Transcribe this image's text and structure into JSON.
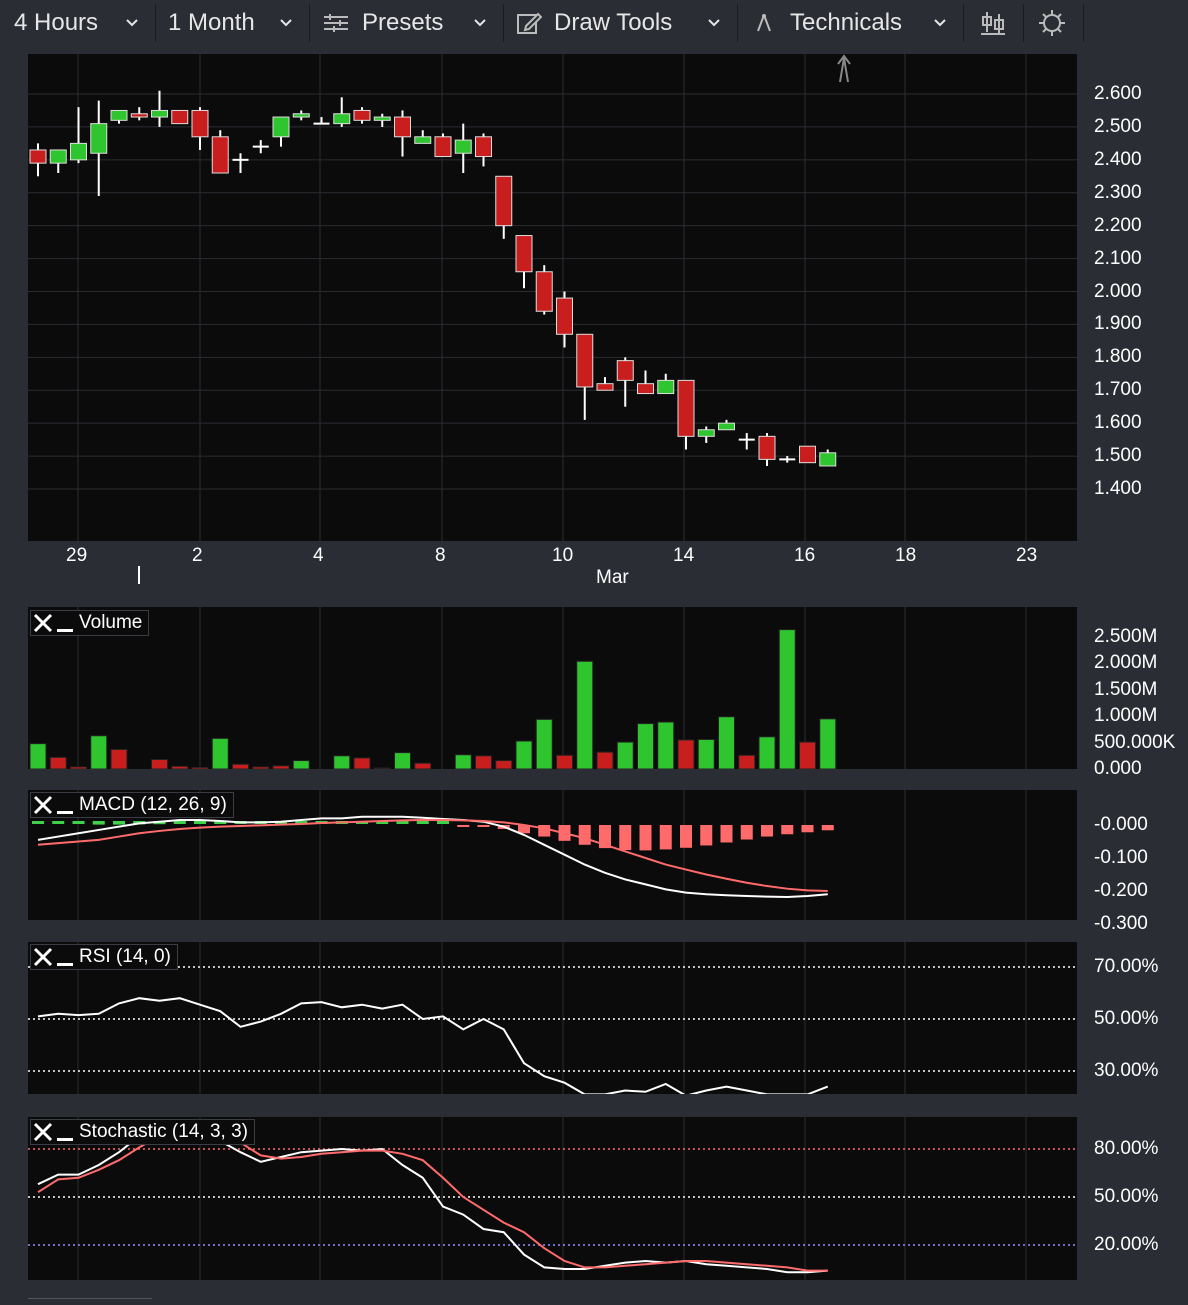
{
  "toolbar": {
    "interval": "4 Hours",
    "range": "1 Month",
    "presets": "Presets",
    "draw_tools": "Draw Tools",
    "technicals": "Technicals"
  },
  "chart_data": [
    {
      "type": "candlestick",
      "ylim": [
        1.4,
        2.65
      ],
      "y_ticks": [
        "2.600",
        "2.500",
        "2.400",
        "2.300",
        "2.200",
        "2.100",
        "2.000",
        "1.900",
        "1.800",
        "1.700",
        "1.600",
        "1.500",
        "1.400"
      ],
      "x_ticks": [
        "29",
        "2",
        "4",
        "8",
        "10",
        "14",
        "16",
        "18",
        "23"
      ],
      "x_month_label": "Mar",
      "candles": [
        {
          "o": 2.43,
          "h": 2.45,
          "l": 2.35,
          "c": 2.39
        },
        {
          "o": 2.39,
          "h": 2.43,
          "l": 2.36,
          "c": 2.43
        },
        {
          "o": 2.4,
          "h": 2.56,
          "l": 2.39,
          "c": 2.45
        },
        {
          "o": 2.42,
          "h": 2.58,
          "l": 2.29,
          "c": 2.51
        },
        {
          "o": 2.52,
          "h": 2.55,
          "l": 2.51,
          "c": 2.55
        },
        {
          "o": 2.54,
          "h": 2.56,
          "l": 2.52,
          "c": 2.53
        },
        {
          "o": 2.53,
          "h": 2.61,
          "l": 2.5,
          "c": 2.55
        },
        {
          "o": 2.55,
          "h": 2.55,
          "l": 2.51,
          "c": 2.51
        },
        {
          "o": 2.55,
          "h": 2.56,
          "l": 2.43,
          "c": 2.47
        },
        {
          "o": 2.47,
          "h": 2.49,
          "l": 2.36,
          "c": 2.36
        },
        {
          "o": 2.4,
          "h": 2.42,
          "l": 2.36,
          "c": 2.4
        },
        {
          "o": 2.44,
          "h": 2.46,
          "l": 2.42,
          "c": 2.44
        },
        {
          "o": 2.47,
          "h": 2.53,
          "l": 2.44,
          "c": 2.53
        },
        {
          "o": 2.53,
          "h": 2.55,
          "l": 2.52,
          "c": 2.54
        },
        {
          "o": 2.51,
          "h": 2.53,
          "l": 2.51,
          "c": 2.51
        },
        {
          "o": 2.51,
          "h": 2.59,
          "l": 2.5,
          "c": 2.54
        },
        {
          "o": 2.55,
          "h": 2.56,
          "l": 2.51,
          "c": 2.52
        },
        {
          "o": 2.52,
          "h": 2.54,
          "l": 2.5,
          "c": 2.53
        },
        {
          "o": 2.53,
          "h": 2.55,
          "l": 2.41,
          "c": 2.47
        },
        {
          "o": 2.45,
          "h": 2.49,
          "l": 2.45,
          "c": 2.47
        },
        {
          "o": 2.47,
          "h": 2.48,
          "l": 2.41,
          "c": 2.41
        },
        {
          "o": 2.42,
          "h": 2.51,
          "l": 2.36,
          "c": 2.46
        },
        {
          "o": 2.47,
          "h": 2.48,
          "l": 2.38,
          "c": 2.41
        },
        {
          "o": 2.35,
          "h": 2.35,
          "l": 2.16,
          "c": 2.2
        },
        {
          "o": 2.17,
          "h": 2.17,
          "l": 2.01,
          "c": 2.06
        },
        {
          "o": 2.06,
          "h": 2.08,
          "l": 1.93,
          "c": 1.94
        },
        {
          "o": 1.98,
          "h": 2.0,
          "l": 1.83,
          "c": 1.87
        },
        {
          "o": 1.87,
          "h": 1.87,
          "l": 1.61,
          "c": 1.71
        },
        {
          "o": 1.72,
          "h": 1.74,
          "l": 1.7,
          "c": 1.7
        },
        {
          "o": 1.79,
          "h": 1.8,
          "l": 1.65,
          "c": 1.73
        },
        {
          "o": 1.72,
          "h": 1.76,
          "l": 1.69,
          "c": 1.69
        },
        {
          "o": 1.69,
          "h": 1.75,
          "l": 1.69,
          "c": 1.73
        },
        {
          "o": 1.73,
          "h": 1.73,
          "l": 1.52,
          "c": 1.56
        },
        {
          "o": 1.56,
          "h": 1.59,
          "l": 1.54,
          "c": 1.58
        },
        {
          "o": 1.58,
          "h": 1.61,
          "l": 1.58,
          "c": 1.6
        },
        {
          "o": 1.55,
          "h": 1.57,
          "l": 1.52,
          "c": 1.55
        },
        {
          "o": 1.56,
          "h": 1.57,
          "l": 1.47,
          "c": 1.49
        },
        {
          "o": 1.49,
          "h": 1.5,
          "l": 1.48,
          "c": 1.49
        },
        {
          "o": 1.53,
          "h": 1.53,
          "l": 1.48,
          "c": 1.48
        },
        {
          "o": 1.47,
          "h": 1.52,
          "l": 1.47,
          "c": 1.51
        }
      ]
    },
    {
      "type": "bar",
      "title": "Volume",
      "ylim": [
        0,
        2.9
      ],
      "y_ticks": [
        "2.500M",
        "2.000M",
        "1.500M",
        "1.000M",
        "500.000K",
        "0.000"
      ],
      "values": [
        0.48,
        0.22,
        0.04,
        0.63,
        0.37,
        0,
        0.18,
        0.05,
        0.03,
        0.58,
        0.09,
        0.04,
        0.06,
        0.16,
        0,
        0.25,
        0.21,
        0.02,
        0.31,
        0.11,
        0,
        0.27,
        0.25,
        0.16,
        0.53,
        0.94,
        0.26,
        2.04,
        0.32,
        0.51,
        0.86,
        0.89,
        0.55,
        0.56,
        0.99,
        0.26,
        0.61,
        2.64,
        0.51,
        0.95
      ],
      "colors": [
        "g",
        "r",
        "r",
        "g",
        "r",
        "n",
        "r",
        "r",
        "r",
        "g",
        "r",
        "r",
        "r",
        "g",
        "n",
        "g",
        "r",
        "r",
        "g",
        "r",
        "n",
        "g",
        "r",
        "r",
        "g",
        "g",
        "r",
        "g",
        "r",
        "g",
        "g",
        "g",
        "r",
        "g",
        "g",
        "r",
        "g",
        "g",
        "r",
        "g"
      ]
    },
    {
      "type": "line",
      "title": "MACD (12, 26, 9)",
      "ylim": [
        -0.31,
        0.04
      ],
      "y_ticks": [
        "-0.000",
        "-0.100",
        "-0.200",
        "-0.300"
      ],
      "series": [
        {
          "values": [
            -0.045,
            -0.035,
            -0.025,
            -0.015,
            -0.005,
            0.005,
            0.01,
            0.015,
            0.015,
            0.012,
            0.008,
            0.008,
            0.01,
            0.015,
            0.02,
            0.02,
            0.025,
            0.025,
            0.025,
            0.022,
            0.018,
            0.015,
            0.01,
            -0.005,
            -0.03,
            -0.06,
            -0.09,
            -0.12,
            -0.145,
            -0.165,
            -0.18,
            -0.195,
            -0.205,
            -0.21,
            -0.213,
            -0.215,
            -0.217,
            -0.218,
            -0.215,
            -0.21
          ]
        },
        {
          "values": [
            -0.06,
            -0.055,
            -0.05,
            -0.045,
            -0.035,
            -0.025,
            -0.018,
            -0.012,
            -0.008,
            -0.005,
            -0.003,
            -0.001,
            0.001,
            0.003,
            0.006,
            0.008,
            0.01,
            0.012,
            0.014,
            0.015,
            0.015,
            0.014,
            0.012,
            0.008,
            0.0,
            -0.01,
            -0.025,
            -0.04,
            -0.06,
            -0.08,
            -0.1,
            -0.12,
            -0.135,
            -0.15,
            -0.163,
            -0.175,
            -0.185,
            -0.193,
            -0.198,
            -0.2
          ]
        }
      ],
      "histogram": [
        0.01,
        0.012,
        0.015,
        0.018,
        0.018,
        0.017,
        0.016,
        0.015,
        0.013,
        0.01,
        0.008,
        0.007,
        0.006,
        0.006,
        0.005,
        0.004,
        0.004,
        0.004,
        0.003,
        0.002,
        0.001,
        -0.002,
        -0.005,
        -0.012,
        -0.025,
        -0.035,
        -0.048,
        -0.06,
        -0.07,
        -0.076,
        -0.077,
        -0.074,
        -0.069,
        -0.062,
        -0.053,
        -0.044,
        -0.035,
        -0.028,
        -0.022,
        -0.016
      ]
    },
    {
      "type": "line",
      "title": "RSI (14, 0)",
      "ylim": [
        13,
        87
      ],
      "y_ticks": [
        "70.00%",
        "50.00%",
        "30.00%"
      ],
      "series": [
        {
          "values": [
            51,
            52,
            51.5,
            52,
            56,
            58,
            57,
            58,
            55.5,
            53,
            47,
            49,
            52,
            56,
            56.5,
            54.5,
            55.5,
            54,
            55.5,
            50,
            51,
            46,
            50,
            46,
            33,
            28,
            25.5,
            21,
            21,
            22.5,
            22,
            25,
            20.5,
            22.5,
            24,
            22.5,
            21,
            21,
            21,
            24
          ]
        }
      ]
    },
    {
      "type": "line",
      "title": "Stochastic (14, 3, 3)",
      "ylim": [
        -5,
        103
      ],
      "y_ticks": [
        "80.00%",
        "50.00%",
        "20.00%"
      ],
      "series": [
        {
          "values": [
            58,
            64,
            64,
            70,
            78,
            88,
            99,
            99,
            99,
            85,
            78,
            72,
            75,
            78,
            79,
            80,
            79,
            80,
            70,
            62,
            44,
            39,
            30,
            28,
            14,
            6,
            5,
            5,
            7,
            9,
            10,
            9,
            10,
            8,
            7,
            6,
            5,
            3,
            3,
            4
          ]
        },
        {
          "values": [
            53,
            61,
            62,
            67,
            73,
            81,
            88,
            96,
            98,
            92,
            84,
            76,
            74,
            75,
            77,
            78,
            79,
            79,
            77,
            73,
            62,
            50,
            42,
            34,
            28,
            18,
            10,
            6,
            6,
            7,
            8,
            9,
            10,
            10,
            9,
            8,
            7,
            6,
            4,
            4
          ]
        }
      ],
      "reference_lines": [
        80,
        50,
        20
      ]
    }
  ]
}
